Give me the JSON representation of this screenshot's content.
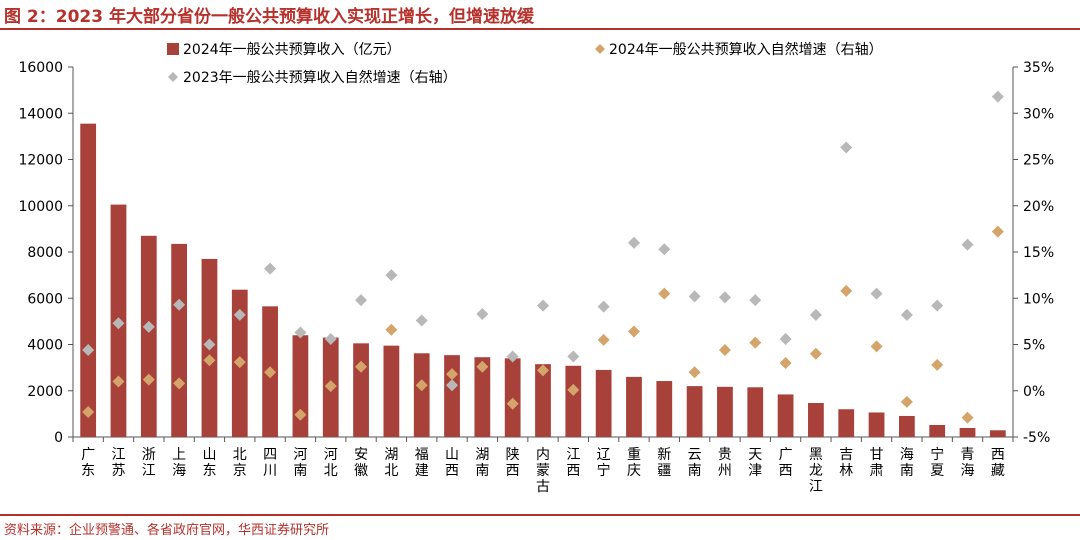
{
  "figure": {
    "title": "图 2：2023 年大部分省份一般公共预算收入实现正增长，但增速放缓",
    "source": "资料来源：企业预警通、各省政府官网，华西证券研究所"
  },
  "colors": {
    "bar": "#a8413a",
    "growth_2024": "#d4a46a",
    "growth_2023": "#b8b8b8",
    "title": "#b7312c",
    "axis": "#555555"
  },
  "chart_data": {
    "type": "bar",
    "categories": [
      "广东",
      "江苏",
      "浙江",
      "上海",
      "山东",
      "北京",
      "四川",
      "河南",
      "河北",
      "安徽",
      "湖北",
      "福建",
      "山西",
      "湖南",
      "陕西",
      "内蒙古",
      "江西",
      "辽宁",
      "重庆",
      "新疆",
      "云南",
      "贵州",
      "天津",
      "广西",
      "黑龙江",
      "吉林",
      "甘肃",
      "海南",
      "宁夏",
      "青海",
      "西藏"
    ],
    "series": [
      {
        "name": "2024年一般公共预算收入（亿元）",
        "type": "bar",
        "axis": "left",
        "values": [
          13550,
          10050,
          8700,
          8350,
          7700,
          6370,
          5650,
          4400,
          4300,
          4050,
          3950,
          3620,
          3540,
          3450,
          3400,
          3150,
          3080,
          2900,
          2600,
          2420,
          2200,
          2170,
          2150,
          1840,
          1470,
          1200,
          1060,
          910,
          520,
          390,
          290
        ]
      },
      {
        "name": "2024年一般公共预算收入自然增速（右轴）",
        "type": "scatter",
        "axis": "right",
        "marker": "diamond",
        "values": [
          -2.3,
          1.0,
          1.2,
          0.8,
          3.3,
          3.1,
          2.0,
          -2.6,
          0.5,
          2.6,
          6.6,
          0.6,
          1.8,
          2.6,
          -1.4,
          2.2,
          0.1,
          5.5,
          6.4,
          10.5,
          2.0,
          4.4,
          5.2,
          3.0,
          4.0,
          10.8,
          4.8,
          -1.2,
          2.8,
          -2.9,
          17.2
        ]
      },
      {
        "name": "2023年一般公共预算收入自然增速（右轴）",
        "type": "scatter",
        "axis": "right",
        "marker": "diamond",
        "values": [
          4.4,
          7.3,
          6.9,
          9.3,
          5.0,
          8.2,
          13.2,
          6.3,
          5.6,
          9.8,
          12.5,
          7.6,
          0.6,
          8.3,
          3.7,
          9.2,
          3.7,
          9.1,
          16.0,
          15.3,
          10.2,
          10.1,
          9.8,
          5.6,
          8.2,
          26.3,
          10.5,
          8.2,
          9.2,
          15.8,
          31.8
        ]
      }
    ],
    "y_left": {
      "ylim": [
        0,
        16000
      ],
      "ticks": [
        "0",
        "2000",
        "4000",
        "6000",
        "8000",
        "10000",
        "12000",
        "14000",
        "16000"
      ]
    },
    "y_right": {
      "ylim": [
        -5,
        35
      ],
      "ticks": [
        "-5%",
        "0%",
        "5%",
        "10%",
        "15%",
        "20%",
        "25%",
        "30%",
        "35%"
      ]
    },
    "legend": [
      "2024年一般公共预算收入（亿元）",
      "2024年一般公共预算收入自然增速（右轴）",
      "2023年一般公共预算收入自然增速（右轴）"
    ],
    "legend_position": "top",
    "grid": false
  }
}
